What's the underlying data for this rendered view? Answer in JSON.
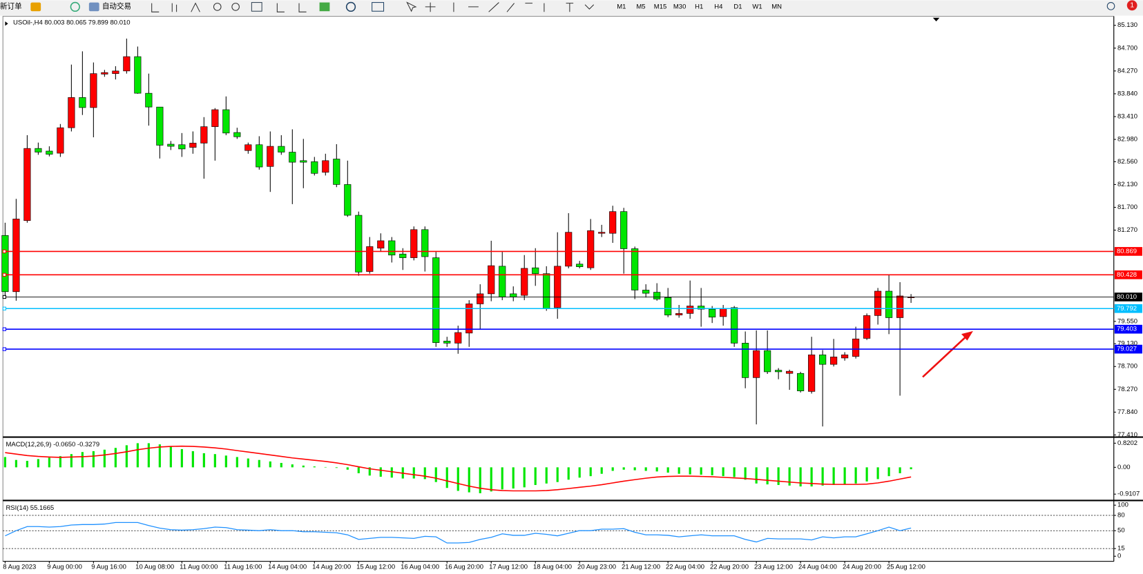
{
  "toolbar": {
    "new_order": "新订单",
    "auto_trade": "自动交易",
    "timeframes": [
      "M1",
      "M5",
      "M15",
      "M30",
      "H1",
      "H4",
      "D1",
      "W1",
      "MN"
    ],
    "badge": "1"
  },
  "chart_data": [
    {
      "type": "candlestick",
      "title": "USOil-,H4 80.003 80.065 79.899 80.010",
      "categories": [
        "8 Aug 2023",
        null,
        null,
        null,
        "9 Aug 00:00",
        null,
        null,
        null,
        "9 Aug 16:00",
        null,
        null,
        null,
        "10 Aug 08:00",
        null,
        null,
        null,
        "11 Aug 00:00",
        null,
        null,
        null,
        "11 Aug 16:00",
        null,
        null,
        null,
        "14 Aug 04:00",
        null,
        null,
        null,
        "14 Aug 20:00",
        null,
        null,
        null,
        "15 Aug 12:00",
        null,
        null,
        null,
        "16 Aug 04:00",
        null,
        null,
        null,
        "16 Aug 20:00",
        null,
        null,
        null,
        "17 Aug 12:00",
        null,
        null,
        null,
        "18 Aug 04:00",
        null,
        null,
        null,
        "20 Aug 23:00",
        null,
        null,
        null,
        "21 Aug 12:00",
        null,
        null,
        null,
        "22 Aug 04:00",
        null,
        null,
        null,
        "22 Aug 20:00",
        null,
        null,
        null,
        "23 Aug 12:00",
        null,
        null,
        null,
        "24 Aug 04:00",
        null,
        null,
        null,
        "24 Aug 20:00",
        null,
        null,
        null,
        "25 Aug 12:00",
        null,
        null
      ],
      "open": [
        81.17,
        80.11,
        81.45,
        82.81,
        82.76,
        82.72,
        83.2,
        83.77,
        83.58,
        84.21,
        84.22,
        84.27,
        84.54,
        83.85,
        83.59,
        82.89,
        82.88,
        82.83,
        82.91,
        83.22,
        83.54,
        83.11,
        82.77,
        82.88,
        82.47,
        82.85,
        82.74,
        82.58,
        82.56,
        82.36,
        82.61,
        82.13,
        81.55,
        80.49,
        80.93,
        81.07,
        80.82,
        80.75,
        81.28,
        80.75,
        79.18,
        79.14,
        79.33,
        79.88,
        80.07,
        80.59,
        80.07,
        80.04,
        80.56,
        80.45,
        79.81,
        80.59,
        80.63,
        80.56,
        81.21,
        81.21,
        81.62,
        80.92,
        80.14,
        80.1,
        80.0,
        79.67,
        79.7,
        79.84,
        79.78,
        79.64,
        79.81,
        79.14,
        78.49,
        79.0,
        78.63,
        78.57,
        78.57,
        78.23,
        78.92,
        78.74,
        78.86,
        78.89,
        79.23,
        79.66,
        80.12,
        79.62,
        80.003
      ],
      "high": [
        81.41,
        81.86,
        83.06,
        82.92,
        82.85,
        83.27,
        84.39,
        84.64,
        84.43,
        84.29,
        84.36,
        84.88,
        84.73,
        84.22,
        83.59,
        82.95,
        83.1,
        83.13,
        83.4,
        83.57,
        83.79,
        83.2,
        82.92,
        83.04,
        83.13,
        83.06,
        83.17,
        82.99,
        82.65,
        82.71,
        82.89,
        82.58,
        81.62,
        81.14,
        81.21,
        81.14,
        80.93,
        81.34,
        81.34,
        80.86,
        79.26,
        79.47,
        79.95,
        80.25,
        81.07,
        80.86,
        80.21,
        80.8,
        80.93,
        80.59,
        81.23,
        81.59,
        80.69,
        81.48,
        81.37,
        81.73,
        81.69,
        80.96,
        80.25,
        80.27,
        80.18,
        79.86,
        80.32,
        80.18,
        79.84,
        79.86,
        79.84,
        79.36,
        79.38,
        79.38,
        78.67,
        78.64,
        78.6,
        79.26,
        79.01,
        79.22,
        78.97,
        79.45,
        79.7,
        80.18,
        80.42,
        80.29,
        80.065
      ],
      "low": [
        80.04,
        79.94,
        81.41,
        82.69,
        82.66,
        82.65,
        83.13,
        83.44,
        83.02,
        84.16,
        84.11,
        84.22,
        83.84,
        83.24,
        82.62,
        82.78,
        82.65,
        82.71,
        82.24,
        82.58,
        83.06,
        82.99,
        82.71,
        82.41,
        81.99,
        82.69,
        81.76,
        82.06,
        82.3,
        82.3,
        82.08,
        81.52,
        80.41,
        80.45,
        80.86,
        80.66,
        80.52,
        80.7,
        80.49,
        79.07,
        79.07,
        78.94,
        79.07,
        79.4,
        79.93,
        79.95,
        79.93,
        79.95,
        80.22,
        79.75,
        79.6,
        80.55,
        80.55,
        80.52,
        81.14,
        81.03,
        80.45,
        79.97,
        80.0,
        79.94,
        79.63,
        79.62,
        79.6,
        79.45,
        79.52,
        79.47,
        79.07,
        78.29,
        77.61,
        78.56,
        78.46,
        78.26,
        78.21,
        78.19,
        77.57,
        78.7,
        78.81,
        78.85,
        79.2,
        79.49,
        79.31,
        78.15,
        79.899
      ],
      "close": [
        80.11,
        81.48,
        82.81,
        82.74,
        82.7,
        83.2,
        83.77,
        83.58,
        84.22,
        84.24,
        84.27,
        84.54,
        83.85,
        83.59,
        82.87,
        82.85,
        82.8,
        82.91,
        83.22,
        83.54,
        83.1,
        83.03,
        82.88,
        82.46,
        82.85,
        82.74,
        82.55,
        82.55,
        82.34,
        82.58,
        82.13,
        81.55,
        80.48,
        80.96,
        81.07,
        80.8,
        80.75,
        81.28,
        80.77,
        79.15,
        79.14,
        79.34,
        79.88,
        80.07,
        80.6,
        80.01,
        80.01,
        80.55,
        80.45,
        79.79,
        80.59,
        81.23,
        80.58,
        81.26,
        81.23,
        81.62,
        80.92,
        80.14,
        80.08,
        79.97,
        79.67,
        79.7,
        79.84,
        79.78,
        79.63,
        79.79,
        79.14,
        78.49,
        79.0,
        78.6,
        78.6,
        78.61,
        78.24,
        78.92,
        78.74,
        78.88,
        78.92,
        79.22,
        79.66,
        80.12,
        79.62,
        80.03,
        80.01
      ],
      "up_color": "#ff0000",
      "down_color": "#00e600",
      "ylim": [
        77.39,
        85.3
      ],
      "yticks": [
        {
          "value": 85.13,
          "label": "85.130"
        },
        {
          "value": 84.7,
          "label": "84.700"
        },
        {
          "value": 84.27,
          "label": "84.270"
        },
        {
          "value": 83.84,
          "label": "83.840"
        },
        {
          "value": 83.41,
          "label": "83.410"
        },
        {
          "value": 82.98,
          "label": "82.980"
        },
        {
          "value": 82.56,
          "label": "82.560"
        },
        {
          "value": 82.13,
          "label": "82.130"
        },
        {
          "value": 81.7,
          "label": "81.700"
        },
        {
          "value": 81.27,
          "label": "81.270"
        },
        {
          "value": 79.55,
          "label": "79.550"
        },
        {
          "value": 79.13,
          "label": "79.130"
        },
        {
          "value": 78.7,
          "label": "78.700"
        },
        {
          "value": 78.27,
          "label": "78.270"
        },
        {
          "value": 77.84,
          "label": "77.840"
        },
        {
          "value": 77.41,
          "label": "77.410"
        }
      ],
      "hlines": [
        {
          "value": 80.869,
          "color": "#ff0000"
        },
        {
          "value": 80.428,
          "color": "#ff0000"
        },
        {
          "value": 80.01,
          "label": "80.010",
          "color": "#000000"
        },
        {
          "value": 79.792,
          "color": "#00bfff"
        },
        {
          "value": 79.403,
          "color": "#0000ff"
        },
        {
          "value": 79.027,
          "color": "#0000ff"
        }
      ]
    },
    {
      "type": "macd",
      "title": "MACD(12,26,9) -0.0650 -0.3279",
      "series": [
        {
          "style": "histogram",
          "color": "#00e600",
          "values": [
            0.35,
            0.25,
            0.22,
            0.28,
            0.33,
            0.38,
            0.45,
            0.52,
            0.55,
            0.6,
            0.66,
            0.75,
            0.82,
            0.82,
            0.78,
            0.7,
            0.62,
            0.55,
            0.48,
            0.45,
            0.4,
            0.35,
            0.3,
            0.25,
            0.2,
            0.15,
            0.1,
            0.06,
            0.03,
            0.01,
            -0.02,
            -0.08,
            -0.2,
            -0.28,
            -0.32,
            -0.35,
            -0.38,
            -0.38,
            -0.4,
            -0.5,
            -0.7,
            -0.8,
            -0.85,
            -0.88,
            -0.82,
            -0.75,
            -0.72,
            -0.68,
            -0.6,
            -0.55,
            -0.5,
            -0.42,
            -0.35,
            -0.3,
            -0.22,
            -0.12,
            -0.08,
            -0.1,
            -0.12,
            -0.14,
            -0.18,
            -0.22,
            -0.24,
            -0.25,
            -0.27,
            -0.3,
            -0.33,
            -0.42,
            -0.55,
            -0.58,
            -0.6,
            -0.62,
            -0.65,
            -0.65,
            -0.62,
            -0.6,
            -0.58,
            -0.55,
            -0.48,
            -0.4,
            -0.3,
            -0.2,
            -0.065
          ]
        },
        {
          "style": "line",
          "color": "#ff0000",
          "values": [
            0.5,
            0.45,
            0.4,
            0.37,
            0.35,
            0.34,
            0.35,
            0.36,
            0.38,
            0.42,
            0.47,
            0.53,
            0.6,
            0.65,
            0.69,
            0.71,
            0.72,
            0.71,
            0.69,
            0.66,
            0.62,
            0.57,
            0.52,
            0.47,
            0.42,
            0.37,
            0.32,
            0.28,
            0.24,
            0.2,
            0.15,
            0.09,
            0.02,
            -0.05,
            -0.1,
            -0.15,
            -0.2,
            -0.25,
            -0.3,
            -0.37,
            -0.46,
            -0.55,
            -0.64,
            -0.71,
            -0.76,
            -0.79,
            -0.8,
            -0.8,
            -0.8,
            -0.79,
            -0.76,
            -0.72,
            -0.68,
            -0.64,
            -0.59,
            -0.53,
            -0.47,
            -0.42,
            -0.37,
            -0.33,
            -0.31,
            -0.3,
            -0.3,
            -0.31,
            -0.32,
            -0.34,
            -0.36,
            -0.38,
            -0.41,
            -0.44,
            -0.47,
            -0.5,
            -0.53,
            -0.55,
            -0.57,
            -0.58,
            -0.58,
            -0.58,
            -0.57,
            -0.53,
            -0.47,
            -0.4,
            -0.3279
          ]
        }
      ],
      "ylim": [
        -1.09,
        0.99
      ],
      "yticks": [
        0.8202,
        {
          "value": 0,
          "label": "0.00"
        },
        -0.9107
      ]
    },
    {
      "type": "line",
      "title": "RSI(14) 55.1665",
      "series": [
        {
          "color": "#1e90ff",
          "values": [
            40,
            50,
            58,
            58,
            57,
            58,
            61,
            62,
            62,
            63,
            66,
            66,
            66,
            60,
            55,
            52,
            51,
            52,
            54,
            57,
            56,
            52,
            51,
            50,
            52,
            50,
            50,
            48,
            48,
            47,
            46,
            42,
            33,
            35,
            37,
            37,
            36,
            35,
            39,
            38,
            26,
            26,
            27,
            33,
            37,
            44,
            41,
            41,
            45,
            43,
            40,
            45,
            50,
            50,
            53,
            53,
            54,
            47,
            42,
            42,
            41,
            38,
            40,
            42,
            40,
            40,
            40,
            33,
            28,
            35,
            34,
            34,
            34,
            32,
            38,
            36,
            38,
            38,
            44,
            50,
            57,
            50,
            55.1665
          ]
        }
      ],
      "ylim": [
        -10,
        107
      ],
      "yticks": [
        100,
        80,
        50,
        15,
        0
      ],
      "levels": [
        80,
        50,
        15
      ]
    }
  ]
}
